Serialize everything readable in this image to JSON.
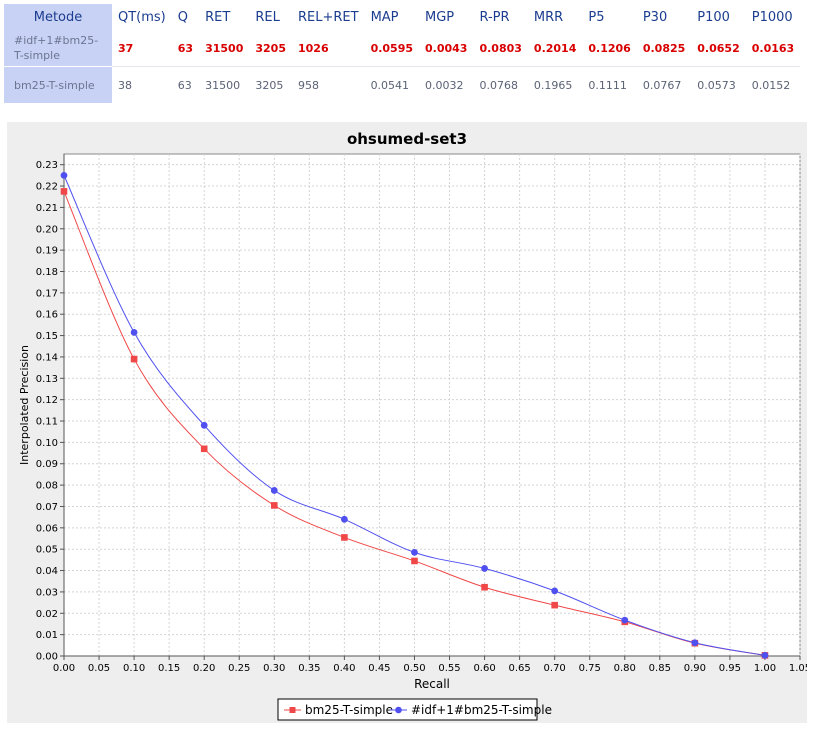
{
  "table": {
    "headers": [
      "Metode",
      "QT(ms)",
      "Q",
      "RET",
      "REL",
      "REL+RET",
      "MAP",
      "MGP",
      "R-PR",
      "MRR",
      "P5",
      "P30",
      "P100",
      "P1000"
    ],
    "rows": [
      {
        "name": "#idf+1#bm25-T-simple",
        "values": [
          "37",
          "63",
          "31500",
          "3205",
          "1026",
          "0.0595",
          "0.0043",
          "0.0803",
          "0.2014",
          "0.1206",
          "0.0825",
          "0.0652",
          "0.0163"
        ]
      },
      {
        "name": "bm25-T-simple",
        "values": [
          "38",
          "63",
          "31500",
          "3205",
          "958",
          "0.0541",
          "0.0032",
          "0.0768",
          "0.1965",
          "0.1111",
          "0.0767",
          "0.0573",
          "0.0152"
        ]
      }
    ]
  },
  "colors": {
    "header_bg": "#c8d2f5",
    "header_text": "#1b3d8f",
    "best_text": "#d80000",
    "series_red": "#f04848",
    "series_blue": "#5050f0"
  },
  "chart_data": {
    "type": "line",
    "title": "ohsumed-set3",
    "xlabel": "Recall",
    "ylabel": "Interpolated Precision",
    "xlim": [
      0,
      1.05
    ],
    "ylim": [
      0,
      0.235
    ],
    "xticks": [
      "0.00",
      "0.05",
      "0.10",
      "0.15",
      "0.20",
      "0.25",
      "0.30",
      "0.35",
      "0.40",
      "0.45",
      "0.50",
      "0.55",
      "0.60",
      "0.65",
      "0.70",
      "0.75",
      "0.80",
      "0.85",
      "0.90",
      "0.95",
      "1.00",
      "1.05"
    ],
    "yticks": [
      "0.00",
      "0.01",
      "0.02",
      "0.03",
      "0.04",
      "0.05",
      "0.06",
      "0.07",
      "0.08",
      "0.09",
      "0.10",
      "0.11",
      "0.12",
      "0.13",
      "0.14",
      "0.15",
      "0.16",
      "0.17",
      "0.18",
      "0.19",
      "0.20",
      "0.21",
      "0.22",
      "0.23"
    ],
    "grid": true,
    "legend_position": "bottom",
    "x": [
      0.0,
      0.1,
      0.2,
      0.3,
      0.4,
      0.5,
      0.6,
      0.7,
      0.8,
      0.9,
      1.0
    ],
    "series": [
      {
        "name": "bm25-T-simple",
        "marker": "square",
        "color": "#f04848",
        "values": [
          0.2175,
          0.139,
          0.097,
          0.0705,
          0.0555,
          0.0445,
          0.0322,
          0.0238,
          0.016,
          0.006,
          0.0003
        ]
      },
      {
        "name": "#idf+1#bm25-T-simple",
        "marker": "circle",
        "color": "#5050f0",
        "values": [
          0.225,
          0.1515,
          0.108,
          0.0775,
          0.064,
          0.0485,
          0.041,
          0.0305,
          0.0168,
          0.0062,
          0.0003
        ]
      }
    ]
  }
}
